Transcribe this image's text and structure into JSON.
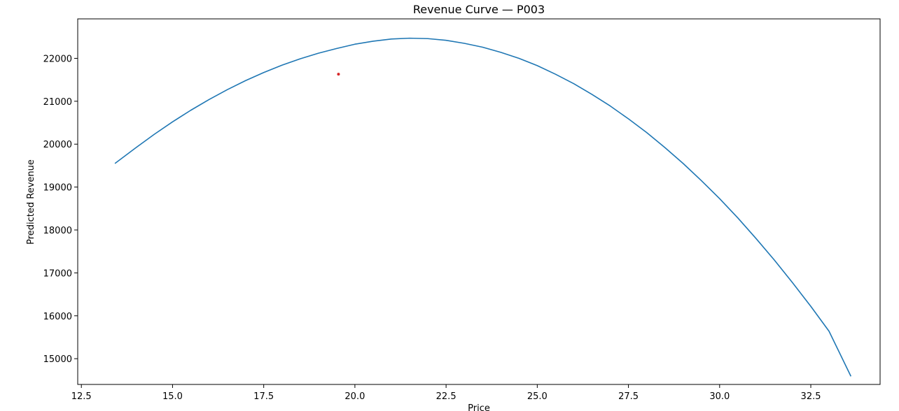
{
  "chart_data": {
    "type": "line",
    "title": "Revenue Curve — P003",
    "xlabel": "Price",
    "ylabel": "Predicted Revenue",
    "xlim": [
      12.4,
      34.4
    ],
    "ylim": [
      14400,
      22920
    ],
    "x_ticks": [
      12.5,
      15.0,
      17.5,
      20.0,
      22.5,
      25.0,
      27.5,
      30.0,
      32.5
    ],
    "x_tick_labels": [
      "12.5",
      "15.0",
      "17.5",
      "20.0",
      "22.5",
      "25.0",
      "27.5",
      "30.0",
      "32.5"
    ],
    "y_ticks": [
      15000,
      16000,
      17000,
      18000,
      19000,
      20000,
      21000,
      22000
    ],
    "y_tick_labels": [
      "15000",
      "16000",
      "17000",
      "18000",
      "19000",
      "20000",
      "21000",
      "22000"
    ],
    "grid": false,
    "series": [
      {
        "color": "#1f77b4",
        "x": [
          13.42,
          14.0,
          14.5,
          15.0,
          15.5,
          16.0,
          16.5,
          17.0,
          17.5,
          18.0,
          18.5,
          19.0,
          19.5,
          20.0,
          20.5,
          21.0,
          21.5,
          22.0,
          22.5,
          23.0,
          23.5,
          24.0,
          24.5,
          25.0,
          25.5,
          26.0,
          26.5,
          27.0,
          27.5,
          28.0,
          28.5,
          29.0,
          29.5,
          30.0,
          30.5,
          31.0,
          31.5,
          32.0,
          32.5,
          33.0,
          33.6
        ],
        "y": [
          19550,
          19920,
          20230,
          20520,
          20790,
          21040,
          21270,
          21480,
          21670,
          21840,
          21990,
          22120,
          22230,
          22330,
          22400,
          22450,
          22470,
          22460,
          22420,
          22350,
          22260,
          22140,
          22000,
          21830,
          21630,
          21410,
          21160,
          20890,
          20590,
          20270,
          19920,
          19550,
          19150,
          18730,
          18280,
          17800,
          17300,
          16770,
          16220,
          15640,
          14590
        ]
      }
    ],
    "points": [
      {
        "x": 19.55,
        "y": 21630,
        "color": "#d62728"
      }
    ]
  }
}
